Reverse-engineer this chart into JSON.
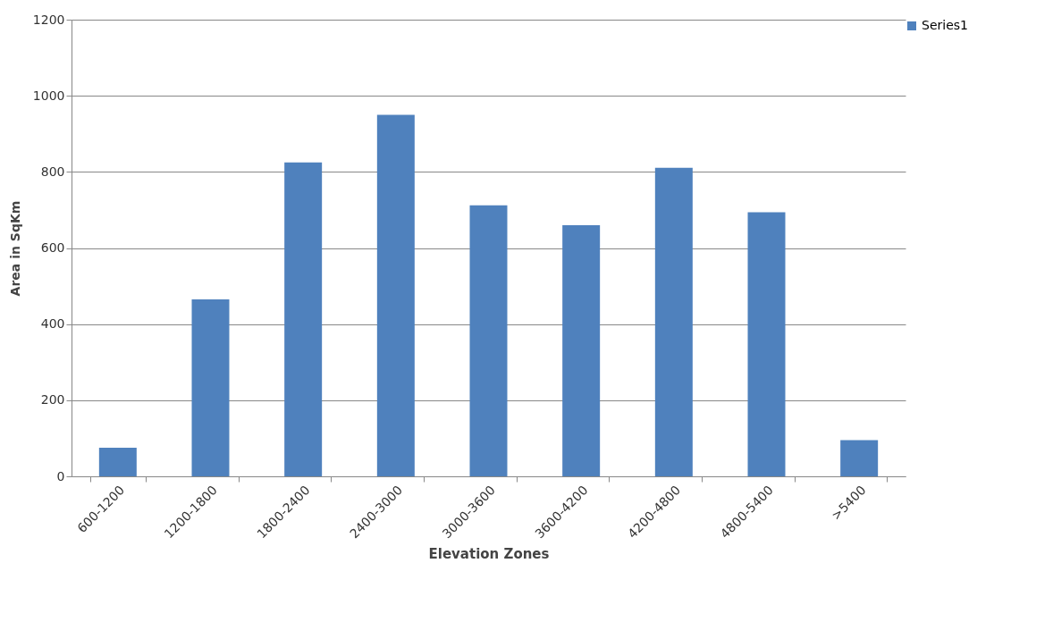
{
  "chart_data": {
    "type": "bar",
    "xlabel": "Elevation Zones",
    "ylabel": "Area in SqKm",
    "categories": [
      "600-1200",
      "1200-1800",
      "1800-2400",
      "2400-3000",
      "3000-3600",
      "3600-4200",
      "4200-4800",
      "4800-5400",
      ">5400"
    ],
    "series": [
      {
        "name": "Series1",
        "color": "#4f81bd",
        "values": [
          75,
          465,
          825,
          950,
          712,
          660,
          811,
          694,
          95
        ]
      }
    ],
    "ylim": [
      0,
      1200
    ],
    "yticks": [
      0,
      200,
      400,
      600,
      800,
      1000,
      1200
    ],
    "grid": "y",
    "legend": "right"
  }
}
